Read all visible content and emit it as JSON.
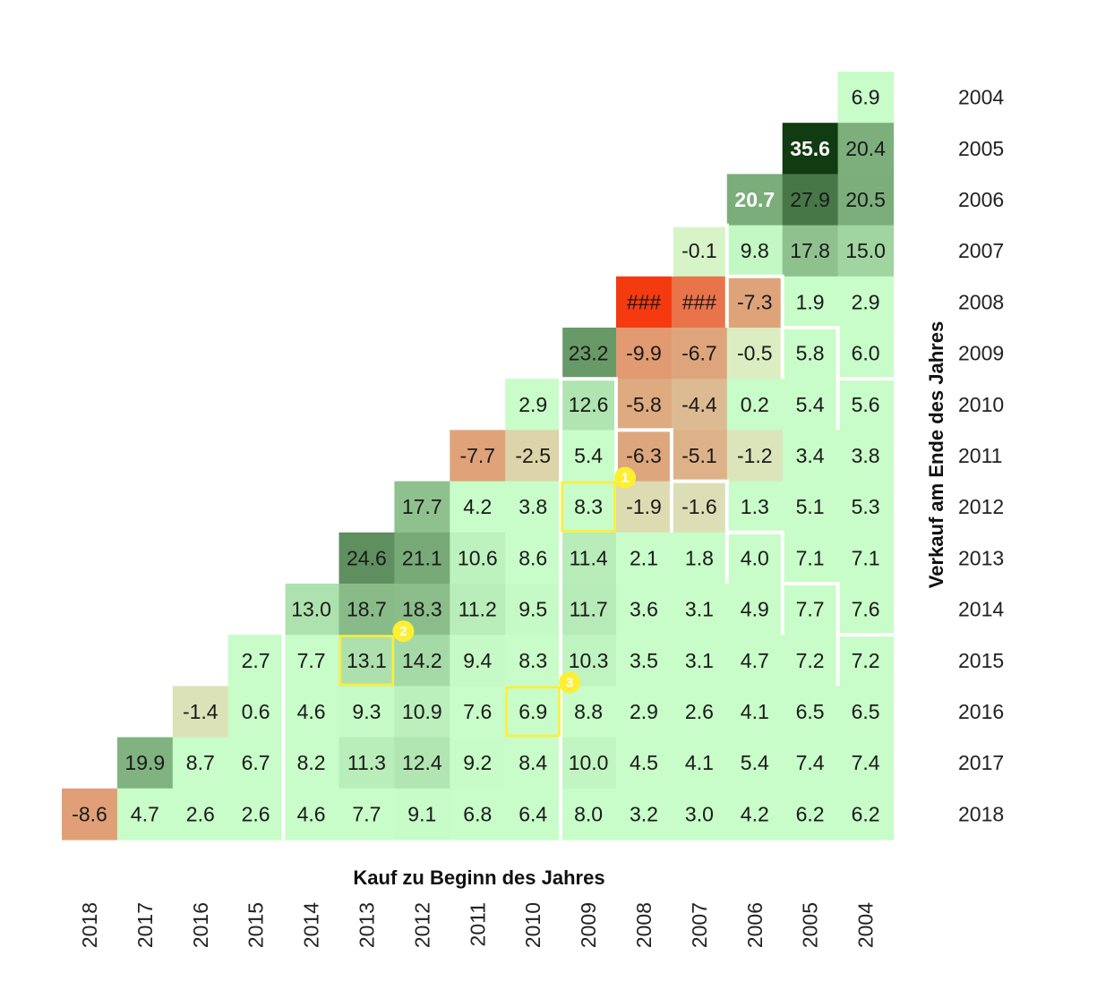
{
  "chart_data": {
    "type": "heatmap",
    "xlabel": "Kauf zu Beginn des Jahres",
    "ylabel": "Verkauf am Ende des Jahres",
    "x_categories": [
      "2018",
      "2017",
      "2016",
      "2015",
      "2014",
      "2013",
      "2012",
      "2011",
      "2010",
      "2009",
      "2008",
      "2007",
      "2006",
      "2005",
      "2004"
    ],
    "y_categories": [
      "2004",
      "2005",
      "2006",
      "2007",
      "2008",
      "2009",
      "2010",
      "2011",
      "2012",
      "2013",
      "2014",
      "2015",
      "2016",
      "2017",
      "2018"
    ],
    "cells": [
      {
        "buy": "2004",
        "sell": "2004",
        "value": 6.9,
        "label": "6.9"
      },
      {
        "buy": "2005",
        "sell": "2005",
        "value": 35.6,
        "label": "35.6"
      },
      {
        "buy": "2004",
        "sell": "2005",
        "value": 20.4,
        "label": "20.4"
      },
      {
        "buy": "2006",
        "sell": "2006",
        "value": 20.7,
        "label": "20.7"
      },
      {
        "buy": "2005",
        "sell": "2006",
        "value": 27.9,
        "label": "27.9"
      },
      {
        "buy": "2004",
        "sell": "2006",
        "value": 20.5,
        "label": "20.5"
      },
      {
        "buy": "2007",
        "sell": "2007",
        "value": -0.1,
        "label": "-0.1"
      },
      {
        "buy": "2006",
        "sell": "2007",
        "value": 9.8,
        "label": "9.8"
      },
      {
        "buy": "2005",
        "sell": "2007",
        "value": 17.8,
        "label": "17.8"
      },
      {
        "buy": "2004",
        "sell": "2007",
        "value": 15.0,
        "label": "15.0"
      },
      {
        "buy": "2008",
        "sell": "2008",
        "value": -40,
        "label": "###"
      },
      {
        "buy": "2007",
        "sell": "2008",
        "value": -22,
        "label": "###"
      },
      {
        "buy": "2006",
        "sell": "2008",
        "value": -7.3,
        "label": "-7.3"
      },
      {
        "buy": "2005",
        "sell": "2008",
        "value": 1.9,
        "label": "1.9"
      },
      {
        "buy": "2004",
        "sell": "2008",
        "value": 2.9,
        "label": "2.9"
      },
      {
        "buy": "2009",
        "sell": "2009",
        "value": 23.2,
        "label": "23.2"
      },
      {
        "buy": "2008",
        "sell": "2009",
        "value": -9.9,
        "label": "-9.9"
      },
      {
        "buy": "2007",
        "sell": "2009",
        "value": -6.7,
        "label": "-6.7"
      },
      {
        "buy": "2006",
        "sell": "2009",
        "value": -0.5,
        "label": "-0.5"
      },
      {
        "buy": "2005",
        "sell": "2009",
        "value": 5.8,
        "label": "5.8"
      },
      {
        "buy": "2004",
        "sell": "2009",
        "value": 6.0,
        "label": "6.0"
      },
      {
        "buy": "2010",
        "sell": "2010",
        "value": 2.9,
        "label": "2.9"
      },
      {
        "buy": "2009",
        "sell": "2010",
        "value": 12.6,
        "label": "12.6"
      },
      {
        "buy": "2008",
        "sell": "2010",
        "value": -5.8,
        "label": "-5.8"
      },
      {
        "buy": "2007",
        "sell": "2010",
        "value": -4.4,
        "label": "-4.4"
      },
      {
        "buy": "2006",
        "sell": "2010",
        "value": 0.2,
        "label": "0.2"
      },
      {
        "buy": "2005",
        "sell": "2010",
        "value": 5.4,
        "label": "5.4"
      },
      {
        "buy": "2004",
        "sell": "2010",
        "value": 5.6,
        "label": "5.6"
      },
      {
        "buy": "2011",
        "sell": "2011",
        "value": -7.7,
        "label": "-7.7"
      },
      {
        "buy": "2010",
        "sell": "2011",
        "value": -2.5,
        "label": "-2.5"
      },
      {
        "buy": "2009",
        "sell": "2011",
        "value": 5.4,
        "label": "5.4"
      },
      {
        "buy": "2008",
        "sell": "2011",
        "value": -6.3,
        "label": "-6.3"
      },
      {
        "buy": "2007",
        "sell": "2011",
        "value": -5.1,
        "label": "-5.1"
      },
      {
        "buy": "2006",
        "sell": "2011",
        "value": -1.2,
        "label": "-1.2"
      },
      {
        "buy": "2005",
        "sell": "2011",
        "value": 3.4,
        "label": "3.4"
      },
      {
        "buy": "2004",
        "sell": "2011",
        "value": 3.8,
        "label": "3.8"
      },
      {
        "buy": "2012",
        "sell": "2012",
        "value": 17.7,
        "label": "17.7"
      },
      {
        "buy": "2011",
        "sell": "2012",
        "value": 4.2,
        "label": "4.2"
      },
      {
        "buy": "2010",
        "sell": "2012",
        "value": 3.8,
        "label": "3.8"
      },
      {
        "buy": "2009",
        "sell": "2012",
        "value": 8.3,
        "label": "8.3"
      },
      {
        "buy": "2008",
        "sell": "2012",
        "value": -1.9,
        "label": "-1.9"
      },
      {
        "buy": "2007",
        "sell": "2012",
        "value": -1.6,
        "label": "-1.6"
      },
      {
        "buy": "2006",
        "sell": "2012",
        "value": 1.3,
        "label": "1.3"
      },
      {
        "buy": "2005",
        "sell": "2012",
        "value": 5.1,
        "label": "5.1"
      },
      {
        "buy": "2004",
        "sell": "2012",
        "value": 5.3,
        "label": "5.3"
      },
      {
        "buy": "2013",
        "sell": "2013",
        "value": 24.6,
        "label": "24.6"
      },
      {
        "buy": "2012",
        "sell": "2013",
        "value": 21.1,
        "label": "21.1"
      },
      {
        "buy": "2011",
        "sell": "2013",
        "value": 10.6,
        "label": "10.6"
      },
      {
        "buy": "2010",
        "sell": "2013",
        "value": 8.6,
        "label": "8.6"
      },
      {
        "buy": "2009",
        "sell": "2013",
        "value": 11.4,
        "label": "11.4"
      },
      {
        "buy": "2008",
        "sell": "2013",
        "value": 2.1,
        "label": "2.1"
      },
      {
        "buy": "2007",
        "sell": "2013",
        "value": 1.8,
        "label": "1.8"
      },
      {
        "buy": "2006",
        "sell": "2013",
        "value": 4.0,
        "label": "4.0"
      },
      {
        "buy": "2005",
        "sell": "2013",
        "value": 7.1,
        "label": "7.1"
      },
      {
        "buy": "2004",
        "sell": "2013",
        "value": 7.1,
        "label": "7.1"
      },
      {
        "buy": "2014",
        "sell": "2014",
        "value": 13.0,
        "label": "13.0"
      },
      {
        "buy": "2013",
        "sell": "2014",
        "value": 18.7,
        "label": "18.7"
      },
      {
        "buy": "2012",
        "sell": "2014",
        "value": 18.3,
        "label": "18.3"
      },
      {
        "buy": "2011",
        "sell": "2014",
        "value": 11.2,
        "label": "11.2"
      },
      {
        "buy": "2010",
        "sell": "2014",
        "value": 9.5,
        "label": "9.5"
      },
      {
        "buy": "2009",
        "sell": "2014",
        "value": 11.7,
        "label": "11.7"
      },
      {
        "buy": "2008",
        "sell": "2014",
        "value": 3.6,
        "label": "3.6"
      },
      {
        "buy": "2007",
        "sell": "2014",
        "value": 3.1,
        "label": "3.1"
      },
      {
        "buy": "2006",
        "sell": "2014",
        "value": 4.9,
        "label": "4.9"
      },
      {
        "buy": "2005",
        "sell": "2014",
        "value": 7.7,
        "label": "7.7"
      },
      {
        "buy": "2004",
        "sell": "2014",
        "value": 7.6,
        "label": "7.6"
      },
      {
        "buy": "2015",
        "sell": "2015",
        "value": 2.7,
        "label": "2.7"
      },
      {
        "buy": "2014",
        "sell": "2015",
        "value": 7.7,
        "label": "7.7"
      },
      {
        "buy": "2013",
        "sell": "2015",
        "value": 13.1,
        "label": "13.1"
      },
      {
        "buy": "2012",
        "sell": "2015",
        "value": 14.2,
        "label": "14.2"
      },
      {
        "buy": "2011",
        "sell": "2015",
        "value": 9.4,
        "label": "9.4"
      },
      {
        "buy": "2010",
        "sell": "2015",
        "value": 8.3,
        "label": "8.3"
      },
      {
        "buy": "2009",
        "sell": "2015",
        "value": 10.3,
        "label": "10.3"
      },
      {
        "buy": "2008",
        "sell": "2015",
        "value": 3.5,
        "label": "3.5"
      },
      {
        "buy": "2007",
        "sell": "2015",
        "value": 3.1,
        "label": "3.1"
      },
      {
        "buy": "2006",
        "sell": "2015",
        "value": 4.7,
        "label": "4.7"
      },
      {
        "buy": "2005",
        "sell": "2015",
        "value": 7.2,
        "label": "7.2"
      },
      {
        "buy": "2004",
        "sell": "2015",
        "value": 7.2,
        "label": "7.2"
      },
      {
        "buy": "2016",
        "sell": "2016",
        "value": -1.4,
        "label": "-1.4"
      },
      {
        "buy": "2015",
        "sell": "2016",
        "value": 0.6,
        "label": "0.6"
      },
      {
        "buy": "2014",
        "sell": "2016",
        "value": 4.6,
        "label": "4.6"
      },
      {
        "buy": "2013",
        "sell": "2016",
        "value": 9.3,
        "label": "9.3"
      },
      {
        "buy": "2012",
        "sell": "2016",
        "value": 10.9,
        "label": "10.9"
      },
      {
        "buy": "2011",
        "sell": "2016",
        "value": 7.6,
        "label": "7.6"
      },
      {
        "buy": "2010",
        "sell": "2016",
        "value": 6.9,
        "label": "6.9"
      },
      {
        "buy": "2009",
        "sell": "2016",
        "value": 8.8,
        "label": "8.8"
      },
      {
        "buy": "2008",
        "sell": "2016",
        "value": 2.9,
        "label": "2.9"
      },
      {
        "buy": "2007",
        "sell": "2016",
        "value": 2.6,
        "label": "2.6"
      },
      {
        "buy": "2006",
        "sell": "2016",
        "value": 4.1,
        "label": "4.1"
      },
      {
        "buy": "2005",
        "sell": "2016",
        "value": 6.5,
        "label": "6.5"
      },
      {
        "buy": "2004",
        "sell": "2016",
        "value": 6.5,
        "label": "6.5"
      },
      {
        "buy": "2017",
        "sell": "2017",
        "value": 19.9,
        "label": "19.9"
      },
      {
        "buy": "2016",
        "sell": "2017",
        "value": 8.7,
        "label": "8.7"
      },
      {
        "buy": "2015",
        "sell": "2017",
        "value": 6.7,
        "label": "6.7"
      },
      {
        "buy": "2014",
        "sell": "2017",
        "value": 8.2,
        "label": "8.2"
      },
      {
        "buy": "2013",
        "sell": "2017",
        "value": 11.3,
        "label": "11.3"
      },
      {
        "buy": "2012",
        "sell": "2017",
        "value": 12.4,
        "label": "12.4"
      },
      {
        "buy": "2011",
        "sell": "2017",
        "value": 9.2,
        "label": "9.2"
      },
      {
        "buy": "2010",
        "sell": "2017",
        "value": 8.4,
        "label": "8.4"
      },
      {
        "buy": "2009",
        "sell": "2017",
        "value": 10.0,
        "label": "10.0"
      },
      {
        "buy": "2008",
        "sell": "2017",
        "value": 4.5,
        "label": "4.5"
      },
      {
        "buy": "2007",
        "sell": "2017",
        "value": 4.1,
        "label": "4.1"
      },
      {
        "buy": "2006",
        "sell": "2017",
        "value": 5.4,
        "label": "5.4"
      },
      {
        "buy": "2005",
        "sell": "2017",
        "value": 7.4,
        "label": "7.4"
      },
      {
        "buy": "2004",
        "sell": "2017",
        "value": 7.4,
        "label": "7.4"
      },
      {
        "buy": "2018",
        "sell": "2018",
        "value": -8.6,
        "label": "-8.6"
      },
      {
        "buy": "2017",
        "sell": "2018",
        "value": 4.7,
        "label": "4.7"
      },
      {
        "buy": "2016",
        "sell": "2018",
        "value": 2.6,
        "label": "2.6"
      },
      {
        "buy": "2015",
        "sell": "2018",
        "value": 2.6,
        "label": "2.6"
      },
      {
        "buy": "2014",
        "sell": "2018",
        "value": 4.6,
        "label": "4.6"
      },
      {
        "buy": "2013",
        "sell": "2018",
        "value": 7.7,
        "label": "7.7"
      },
      {
        "buy": "2012",
        "sell": "2018",
        "value": 9.1,
        "label": "9.1"
      },
      {
        "buy": "2011",
        "sell": "2018",
        "value": 6.8,
        "label": "6.8"
      },
      {
        "buy": "2010",
        "sell": "2018",
        "value": 6.4,
        "label": "6.4"
      },
      {
        "buy": "2009",
        "sell": "2018",
        "value": 8.0,
        "label": "8.0"
      },
      {
        "buy": "2008",
        "sell": "2018",
        "value": 3.2,
        "label": "3.2"
      },
      {
        "buy": "2007",
        "sell": "2018",
        "value": 3.0,
        "label": "3.0"
      },
      {
        "buy": "2006",
        "sell": "2018",
        "value": 4.2,
        "label": "4.2"
      },
      {
        "buy": "2005",
        "sell": "2018",
        "value": 6.2,
        "label": "6.2"
      },
      {
        "buy": "2004",
        "sell": "2018",
        "value": 6.2,
        "label": "6.2"
      }
    ],
    "highlights": [
      {
        "number": "1",
        "buy": "2009",
        "sell": "2012"
      },
      {
        "number": "2",
        "buy": "2013",
        "sell": "2015"
      },
      {
        "number": "3",
        "buy": "2010",
        "sell": "2016"
      }
    ],
    "boundaries": [
      {
        "min_holding_years": 5
      },
      {
        "min_holding_years": 10
      }
    ],
    "colors": {
      "highlight": "#ffef33",
      "boundary": "#ffffff",
      "negative_strong": "#f53a10",
      "negative_mid": "#dea77e",
      "neutral": "#dcf1c6",
      "zero_cool": "#c8fcc8",
      "positive_mid": "#7fb27f",
      "positive_strong": "#0e380e"
    },
    "legend": "none",
    "grid": false
  }
}
